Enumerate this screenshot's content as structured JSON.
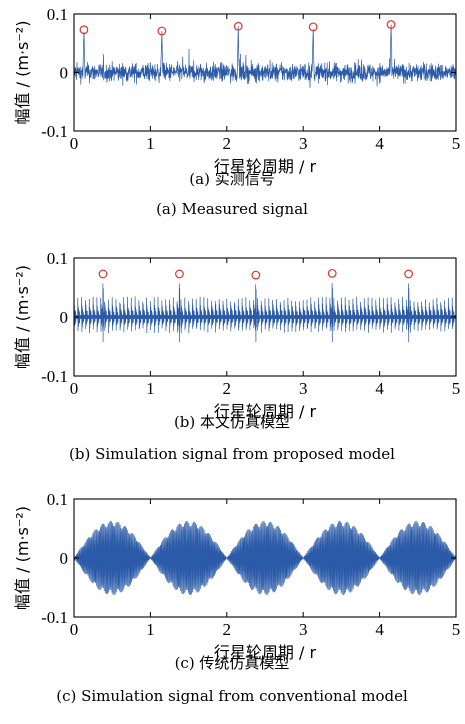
{
  "colors": {
    "signal": "#2a5aa8",
    "marker": "#e0332a",
    "axis": "#000000"
  },
  "chart_data": [
    {
      "type": "line",
      "id": "a",
      "xlabel": "行星轮周期 / r",
      "ylabel": "幅值 / (m·s⁻²)",
      "xlim": [
        0,
        5
      ],
      "ylim": [
        -0.1,
        0.1
      ],
      "xticks": [
        "0",
        "1",
        "2",
        "3",
        "4",
        "5"
      ],
      "yticks": [
        "-0.1",
        "0",
        "0.1"
      ],
      "caption_cn": "(a) 实测信号",
      "caption_en": "(a) Measured signal",
      "signal_kind": "noisy_impulses",
      "noise_amplitude": 0.03,
      "peak_markers": [
        {
          "x": 0.13,
          "y": 0.073
        },
        {
          "x": 1.15,
          "y": 0.071
        },
        {
          "x": 2.15,
          "y": 0.079
        },
        {
          "x": 3.13,
          "y": 0.078
        },
        {
          "x": 4.15,
          "y": 0.082
        }
      ]
    },
    {
      "type": "line",
      "id": "b",
      "xlabel": "行星轮周期 / r",
      "ylabel": "幅值 / (m·s⁻²)",
      "xlim": [
        0,
        5
      ],
      "ylim": [
        -0.1,
        0.1
      ],
      "xticks": [
        "0",
        "1",
        "2",
        "3",
        "4",
        "5"
      ],
      "yticks": [
        "-0.1",
        "0",
        "0.1"
      ],
      "caption_cn": "(b) 本文仿真模型",
      "caption_en": "(b) Simulation signal from proposed model",
      "signal_kind": "periodic_impulses",
      "envelope_amplitude": 0.035,
      "peak_markers": [
        {
          "x": 0.38,
          "y": 0.073
        },
        {
          "x": 1.38,
          "y": 0.073
        },
        {
          "x": 2.38,
          "y": 0.071
        },
        {
          "x": 3.38,
          "y": 0.074
        },
        {
          "x": 4.38,
          "y": 0.073
        }
      ]
    },
    {
      "type": "line",
      "id": "c",
      "xlabel": "行星轮周期 / r",
      "ylabel": "幅值 / (m·s⁻²)",
      "xlim": [
        0,
        5
      ],
      "ylim": [
        -0.1,
        0.1
      ],
      "xticks": [
        "0",
        "1",
        "2",
        "3",
        "4",
        "5"
      ],
      "yticks": [
        "-0.1",
        "0",
        "0.1"
      ],
      "caption_cn": "(c) 传统仿真模型",
      "caption_en": "(c) Simulation signal from conventional model",
      "signal_kind": "amplitude_modulated",
      "envelope_amplitude": 0.063,
      "modulation_period": 1,
      "peak_markers": []
    }
  ]
}
